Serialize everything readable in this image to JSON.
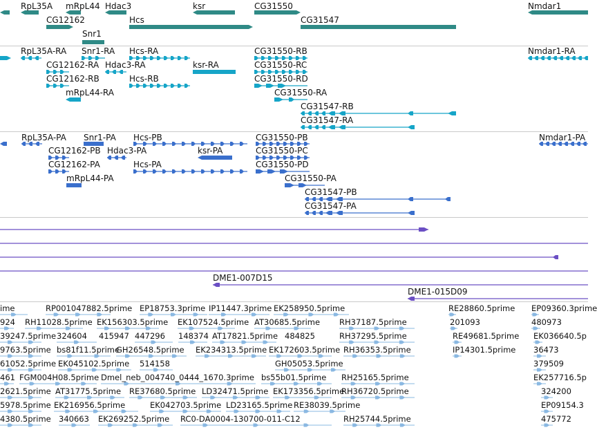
{
  "colors": {
    "gene": "#2f8a86",
    "transcript_rna": "#16a5c8",
    "protein": "#3a6fcc",
    "clone": "#6b4fc4",
    "est": "#8ab8e2",
    "separator": "#c9c9c9"
  },
  "tracks": {
    "genes": {
      "labels": [
        "RpL35A",
        "mRpL44",
        "Hdac3",
        "ksr",
        "CG31550",
        "Nmdar1",
        "CG12162",
        "Hcs",
        "CG31547",
        "Snr1"
      ]
    },
    "transcripts": {
      "labels": [
        "RpL35A-RA",
        "Snr1-RA",
        "Hcs-RA",
        "CG31550-RB",
        "Nmdar1-RA",
        "CG12162-RA",
        "Hdac3-RA",
        "ksr-RA",
        "CG31550-RC",
        "CG12162-RB",
        "Hcs-RB",
        "CG31550-RD",
        "mRpL44-RA",
        "CG31550-RA",
        "CG31547-RB",
        "CG31547-RA"
      ]
    },
    "proteins": {
      "labels": [
        "RpL35A-PA",
        "Snr1-PA",
        "Hcs-PB",
        "CG31550-PB",
        "Nmdar1-PA",
        "CG12162-PB",
        "Hdac3-PA",
        "ksr-PA",
        "CG31550-PC",
        "CG12162-PA",
        "Hcs-PA",
        "CG31550-PD",
        "mRpL44-PA",
        "CG31550-PA",
        "CG31547-PB",
        "CG31547-PA"
      ]
    },
    "clones": {
      "labels": [
        "DME1-007D15",
        "DME1-015D09"
      ]
    },
    "ests": {
      "labels": [
        "ime",
        "RP001047882.5prime",
        "EP18753.3prime",
        "IP11447.3prime",
        "EK258950.5prime",
        "RE28860.5prime",
        "EP09360.3prime",
        "924",
        "RH11028.5prime",
        "EK156303.5prime",
        "EK107524.5prime",
        "AT30685.5prime",
        "RH37187.5prime",
        "201093",
        "480973",
        "39247.5prime",
        "324604",
        "415947",
        "447296",
        "148374",
        "AT17821.5prime",
        "484825",
        "RH37295.5prime",
        "RE49681.5prime",
        "EK036640.5p",
        "9763.5prime",
        "bs81f11.5prime",
        "GH26548.5prime",
        "EK234313.5prime",
        "EK172603.5prime",
        "RH36353.5prime",
        "IP14301.5prime",
        "36473",
        "61052.5prime",
        "EK045102.5prime",
        "514158",
        "GH05053.5prime",
        "379509",
        "461",
        "FGM004H08.5prime",
        "Dmel_neb_004740_0444_1670.3prime",
        "bs55b01.5prime",
        "RH25165.5prime",
        "EK257716.5p",
        "2621.5prime",
        "AT31775.5prime",
        "RE37680.5prime",
        "LD32471.5prime",
        "EK173356.5prime",
        "RH36720.5prime",
        "324200",
        "5978.5prime",
        "EK216956.5prime",
        "EK042703.5prime",
        "LD23165.5prime",
        "RE38039.5prime",
        "EP09154.3",
        "4380.5prime",
        "340663",
        "EK269252.5prime",
        "RC0-DA0004-130700-011-C12",
        "RH25744.5prime",
        "475772"
      ]
    }
  }
}
